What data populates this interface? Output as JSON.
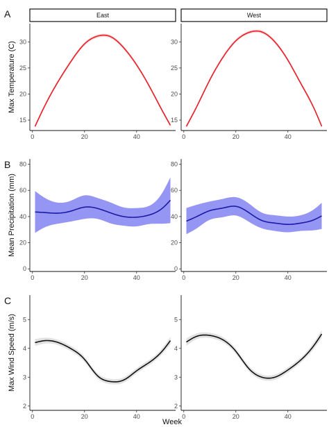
{
  "figure": {
    "x_axis_title": "Week",
    "facets": [
      "East",
      "West"
    ]
  },
  "chart_data": [
    {
      "panel": "A",
      "type": "line",
      "ylabel": "Max Temperature (C)",
      "xlabel": "",
      "xlim": [
        -1,
        55
      ],
      "ylim": [
        13,
        33.5
      ],
      "xticks": [
        0,
        20,
        40
      ],
      "yticks": [
        15,
        20,
        25,
        30
      ],
      "color": "#e8202a",
      "band_color": "#f2a3a6",
      "band_opacity": 0.45,
      "ribbon": "narrow",
      "facets": [
        {
          "name": "East",
          "x": [
            1,
            5,
            10,
            15,
            20,
            25,
            30,
            35,
            40,
            45,
            50,
            53
          ],
          "y": [
            13.8,
            18.0,
            22.5,
            26.4,
            29.6,
            31.1,
            31.0,
            28.9,
            25.6,
            21.4,
            16.7,
            14.0
          ],
          "se": [
            0.3,
            0.3,
            0.3,
            0.3,
            0.3,
            0.3,
            0.3,
            0.3,
            0.3,
            0.3,
            0.3,
            0.3
          ]
        },
        {
          "name": "West",
          "x": [
            1,
            5,
            10,
            15,
            20,
            25,
            30,
            35,
            40,
            45,
            50,
            53
          ],
          "y": [
            13.8,
            17.6,
            22.7,
            27.0,
            30.2,
            31.8,
            31.9,
            30.0,
            26.5,
            22.0,
            17.3,
            13.8
          ],
          "se": [
            0.3,
            0.3,
            0.3,
            0.3,
            0.3,
            0.3,
            0.3,
            0.3,
            0.3,
            0.3,
            0.3,
            0.3
          ]
        }
      ]
    },
    {
      "panel": "B",
      "type": "line",
      "ylabel": "Mean Precipitation (mm)",
      "xlabel": "",
      "xlim": [
        -1,
        55
      ],
      "ylim": [
        -2,
        84
      ],
      "xticks": [
        0,
        20,
        40
      ],
      "yticks": [
        0,
        20,
        40,
        60,
        80
      ],
      "color": "#1a1aa6",
      "band_color": "#8a8af2",
      "band_opacity": 0.9,
      "ribbon": "wide",
      "facets": [
        {
          "name": "East",
          "x": [
            1,
            5,
            10,
            15,
            20,
            25,
            30,
            35,
            40,
            45,
            50,
            53
          ],
          "y": [
            43.5,
            43.0,
            42.6,
            44.3,
            47.2,
            46.2,
            42.8,
            40.0,
            39.5,
            41.3,
            46.5,
            52.5
          ],
          "se": [
            16,
            11,
            8,
            8,
            9,
            8,
            8,
            7,
            7,
            7,
            12,
            17.5
          ]
        },
        {
          "name": "West",
          "x": [
            1,
            5,
            10,
            15,
            20,
            25,
            30,
            35,
            40,
            45,
            50,
            53
          ],
          "y": [
            36.5,
            40.0,
            44.5,
            46.5,
            47.8,
            43.0,
            37.0,
            35.0,
            34.0,
            35.0,
            37.5,
            40.5
          ],
          "se": [
            10,
            9,
            7,
            7,
            7,
            7,
            6,
            6,
            6,
            6,
            8,
            10
          ]
        }
      ]
    },
    {
      "panel": "C",
      "type": "line",
      "ylabel": "Max Wind Speed (m/s)",
      "xlabel": "Week",
      "xlim": [
        -1,
        55
      ],
      "ylim": [
        1.85,
        5.85
      ],
      "xticks": [
        0,
        20,
        40
      ],
      "yticks": [
        2,
        3,
        4,
        5
      ],
      "color": "#111111",
      "band_color": "#d9d9d9",
      "band_opacity": 0.8,
      "ribbon": "narrow",
      "facets": [
        {
          "name": "East",
          "x": [
            1,
            5,
            10,
            15,
            20,
            25,
            30,
            35,
            40,
            45,
            50,
            53
          ],
          "y": [
            4.2,
            4.27,
            4.2,
            3.98,
            3.62,
            3.05,
            2.85,
            2.9,
            3.22,
            3.52,
            3.92,
            4.27
          ],
          "se": [
            0.12,
            0.1,
            0.09,
            0.09,
            0.09,
            0.09,
            0.09,
            0.09,
            0.09,
            0.09,
            0.1,
            0.13
          ]
        },
        {
          "name": "West",
          "x": [
            1,
            5,
            10,
            15,
            20,
            25,
            30,
            35,
            40,
            45,
            50,
            53
          ],
          "y": [
            4.22,
            4.42,
            4.45,
            4.3,
            3.9,
            3.3,
            3.0,
            3.0,
            3.25,
            3.6,
            4.1,
            4.5
          ],
          "se": [
            0.13,
            0.1,
            0.09,
            0.09,
            0.09,
            0.09,
            0.09,
            0.09,
            0.09,
            0.09,
            0.11,
            0.14
          ]
        }
      ]
    }
  ]
}
